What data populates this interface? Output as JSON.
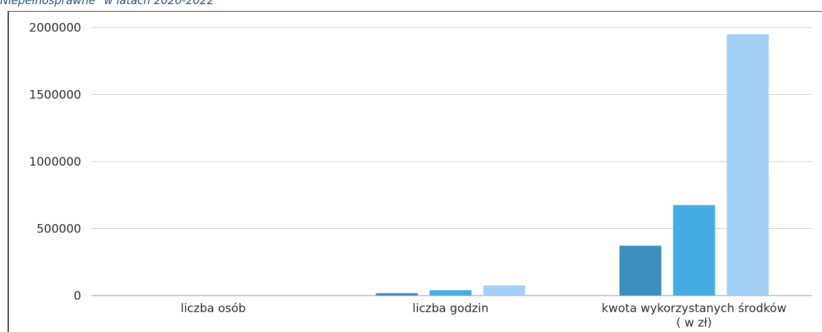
{
  "caption": "Niepełnosprawne\" w latach 2020-2022",
  "chart_data": {
    "type": "bar",
    "title": "Niepełnosprawne\" w latach 2020-2022",
    "xlabel": "",
    "ylabel": "",
    "categories": [
      [
        "liczba osób"
      ],
      [
        "liczba godzin"
      ],
      [
        "kwota wykorzystanych środków",
        "( w zł)"
      ]
    ],
    "yticks": [
      "0",
      "500000",
      "1000000",
      "1500000",
      "2000000"
    ],
    "ylim": [
      0,
      2000000
    ],
    "grid": true,
    "legend": "none",
    "series": [
      {
        "values": [
          0,
          18000,
          372000
        ],
        "color": "#3b8fbf"
      },
      {
        "values": [
          0,
          40000,
          675000
        ],
        "color": "#45ade3"
      },
      {
        "values": [
          0,
          76000,
          1950000
        ],
        "color": "#a3cff4"
      }
    ]
  }
}
